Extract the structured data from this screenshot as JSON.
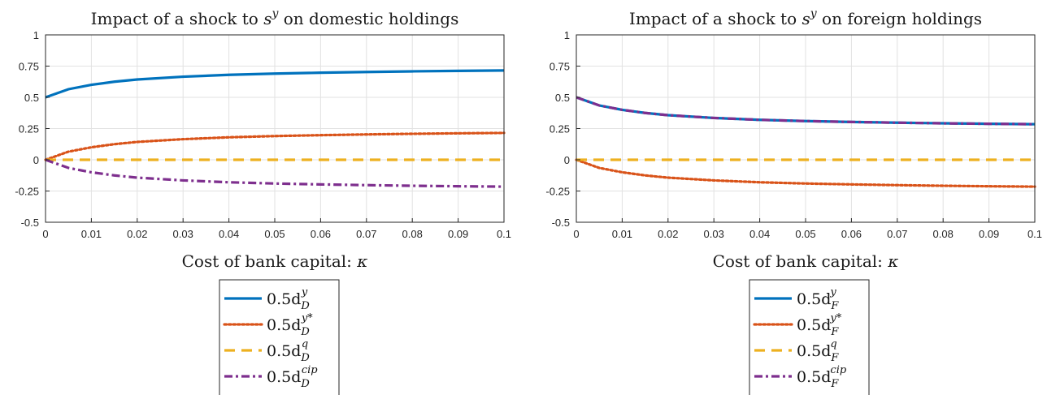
{
  "chart_data": [
    {
      "type": "line",
      "title": "Impact of a shock to s^y on domestic holdings",
      "title_parts": {
        "text": "Impact of a shock to ",
        "var": "s",
        "sup": "y",
        "rest": " on domestic holdings"
      },
      "xlabel": "Cost of bank capital: κ",
      "xlabel_parts": {
        "text": "Cost of bank capital: ",
        "var": "κ"
      },
      "ylabel": "",
      "xlim": [
        0,
        0.1
      ],
      "ylim": [
        -0.5,
        1
      ],
      "xticks": [
        "0",
        "0.01",
        "0.02",
        "0.03",
        "0.04",
        "0.05",
        "0.06",
        "0.07",
        "0.08",
        "0.09",
        "0.1"
      ],
      "yticks": [
        "-0.5",
        "-0.25",
        "0",
        "0.25",
        "0.5",
        "0.75",
        "1"
      ],
      "grid": true,
      "legend_position": "below",
      "x": [
        0,
        0.005,
        0.01,
        0.015,
        0.02,
        0.03,
        0.04,
        0.05,
        0.06,
        0.07,
        0.08,
        0.09,
        0.1
      ],
      "series": [
        {
          "name": "0.5d_D^y",
          "base": "0.5d",
          "sub": "D",
          "sup": "y",
          "color": "#0072BD",
          "style": "solid",
          "values": [
            0.5,
            0.565,
            0.6,
            0.625,
            0.643,
            0.665,
            0.68,
            0.69,
            0.697,
            0.703,
            0.708,
            0.712,
            0.715
          ]
        },
        {
          "name": "0.5d_D^y*",
          "base": "0.5d",
          "sub": "D",
          "sup": "y*",
          "color": "#D95319",
          "style": "dotted",
          "values": [
            0,
            0.065,
            0.1,
            0.125,
            0.143,
            0.165,
            0.18,
            0.19,
            0.197,
            0.203,
            0.208,
            0.212,
            0.215
          ]
        },
        {
          "name": "0.5d_D^q",
          "base": "0.5d",
          "sub": "D",
          "sup": "q",
          "color": "#EDB120",
          "style": "dashed",
          "values": [
            0,
            0,
            0,
            0,
            0,
            0,
            0,
            0,
            0,
            0,
            0,
            0,
            0
          ]
        },
        {
          "name": "0.5d_D^cip",
          "base": "0.5d",
          "sub": "D",
          "sup": "cip",
          "color": "#7E2F8E",
          "style": "dashdot",
          "values": [
            0,
            -0.065,
            -0.1,
            -0.125,
            -0.143,
            -0.165,
            -0.18,
            -0.19,
            -0.197,
            -0.203,
            -0.208,
            -0.212,
            -0.215
          ]
        }
      ]
    },
    {
      "type": "line",
      "title": "Impact of a shock to s^y on foreign holdings",
      "title_parts": {
        "text": "Impact of a shock to ",
        "var": "s",
        "sup": "y",
        "rest": " on foreign holdings"
      },
      "xlabel": "Cost of bank capital: κ",
      "xlabel_parts": {
        "text": "Cost of bank capital: ",
        "var": "κ"
      },
      "ylabel": "",
      "xlim": [
        0,
        0.1
      ],
      "ylim": [
        -0.5,
        1
      ],
      "xticks": [
        "0",
        "0.01",
        "0.02",
        "0.03",
        "0.04",
        "0.05",
        "0.06",
        "0.07",
        "0.08",
        "0.09",
        "0.1"
      ],
      "yticks": [
        "-0.5",
        "-0.25",
        "0",
        "0.25",
        "0.5",
        "0.75",
        "1"
      ],
      "grid": true,
      "legend_position": "below",
      "x": [
        0,
        0.005,
        0.01,
        0.015,
        0.02,
        0.03,
        0.04,
        0.05,
        0.06,
        0.07,
        0.08,
        0.09,
        0.1
      ],
      "series": [
        {
          "name": "0.5d_F^y",
          "base": "0.5d",
          "sub": "F",
          "sup": "y",
          "color": "#0072BD",
          "style": "solid",
          "values": [
            0.5,
            0.435,
            0.4,
            0.375,
            0.357,
            0.335,
            0.32,
            0.31,
            0.303,
            0.297,
            0.292,
            0.288,
            0.285
          ]
        },
        {
          "name": "0.5d_F^y*",
          "base": "0.5d",
          "sub": "F",
          "sup": "y*",
          "color": "#D95319",
          "style": "dotted",
          "values": [
            0,
            -0.065,
            -0.1,
            -0.125,
            -0.143,
            -0.165,
            -0.18,
            -0.19,
            -0.197,
            -0.203,
            -0.208,
            -0.212,
            -0.215
          ]
        },
        {
          "name": "0.5d_F^q",
          "base": "0.5d",
          "sub": "F",
          "sup": "q",
          "color": "#EDB120",
          "style": "dashed",
          "values": [
            0,
            0,
            0,
            0,
            0,
            0,
            0,
            0,
            0,
            0,
            0,
            0,
            0
          ]
        },
        {
          "name": "0.5d_F^cip",
          "base": "0.5d",
          "sub": "F",
          "sup": "cip",
          "color": "#7E2F8E",
          "style": "dashdot",
          "values": [
            0.5,
            0.435,
            0.4,
            0.375,
            0.357,
            0.335,
            0.32,
            0.31,
            0.303,
            0.297,
            0.292,
            0.288,
            0.285
          ]
        }
      ]
    }
  ]
}
